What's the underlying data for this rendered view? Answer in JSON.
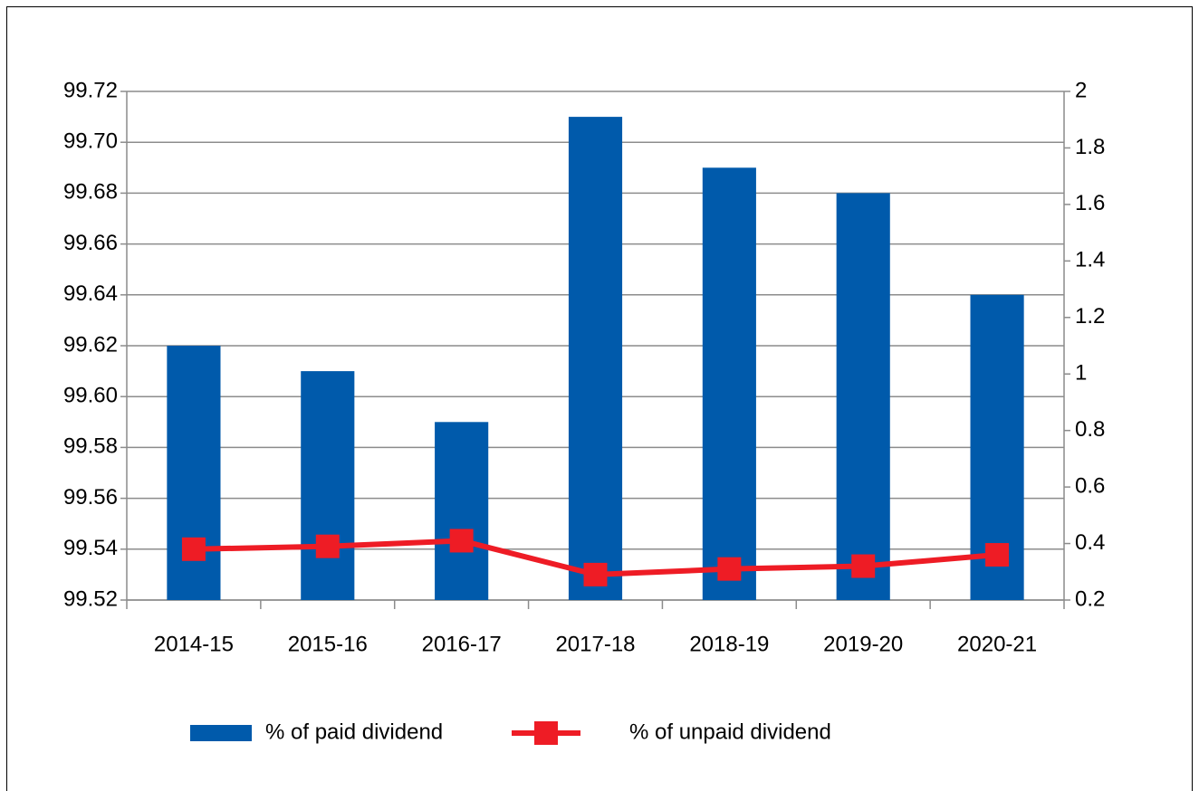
{
  "chart_data": {
    "type": "bar",
    "categories": [
      "2014-15",
      "2015-16",
      "2016-17",
      "2017-18",
      "2018-19",
      "2019-20",
      "2020-21"
    ],
    "series": [
      {
        "name": "% of paid dividend",
        "type": "bar",
        "color": "#005aab",
        "values": [
          99.62,
          99.61,
          99.59,
          99.71,
          99.69,
          99.68,
          99.64
        ]
      },
      {
        "name": "% of unpaid dividend",
        "type": "line",
        "axis": "y2",
        "color": "#ee1c25",
        "values": [
          0.38,
          0.39,
          0.41,
          0.29,
          0.31,
          0.32,
          0.36
        ]
      }
    ],
    "ylim": [
      99.52,
      99.72
    ],
    "yticks": [
      99.52,
      99.54,
      99.56,
      99.58,
      {
        "value": 99.6,
        "label": "99.60"
      },
      99.62,
      99.64,
      99.66,
      99.68,
      {
        "value": 99.7,
        "label": "99.70"
      },
      99.72
    ],
    "y2lim": [
      0.2,
      2
    ],
    "y2ticks": [
      0.2,
      0.4,
      0.6,
      0.8,
      1,
      1.2,
      1.4,
      1.6,
      1.8,
      2
    ],
    "grid": true,
    "legend": "bottom"
  }
}
